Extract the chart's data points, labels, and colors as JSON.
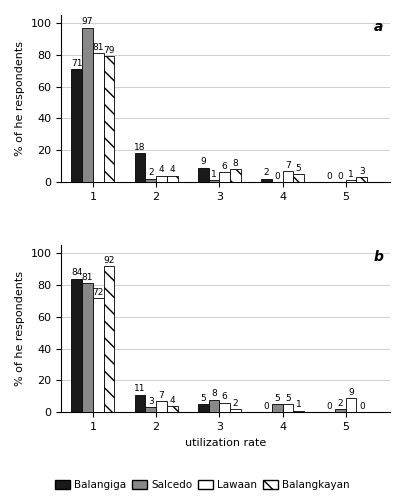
{
  "chart_a": {
    "label": "a",
    "categories": [
      1,
      2,
      3,
      4,
      5
    ],
    "balangiga": [
      71,
      18,
      9,
      2,
      0
    ],
    "salcedo": [
      97,
      2,
      1,
      0,
      0
    ],
    "lawaan": [
      81,
      4,
      6,
      7,
      1
    ],
    "balangkayan": [
      79,
      4,
      8,
      5,
      3
    ]
  },
  "chart_b": {
    "label": "b",
    "categories": [
      1,
      2,
      3,
      4,
      5
    ],
    "balangiga": [
      84,
      11,
      5,
      0,
      0
    ],
    "salcedo": [
      81,
      3,
      8,
      5,
      2
    ],
    "lawaan": [
      72,
      7,
      6,
      5,
      9
    ],
    "balangkayan": [
      92,
      4,
      2,
      1,
      0
    ]
  },
  "bar_width": 0.17,
  "colors": {
    "balangiga": "#1a1a1a",
    "salcedo": "#888888",
    "lawaan": "#ffffff",
    "balangkayan": "#ffffff"
  },
  "ylabel": "% of he respondents",
  "xlabel": "utilization rate",
  "ylim": [
    0,
    105
  ],
  "yticks": [
    0,
    20,
    40,
    60,
    80,
    100
  ],
  "background_color": "#ffffff",
  "label_fontsize": 8,
  "tick_fontsize": 8,
  "bar_label_fontsize": 6.5
}
